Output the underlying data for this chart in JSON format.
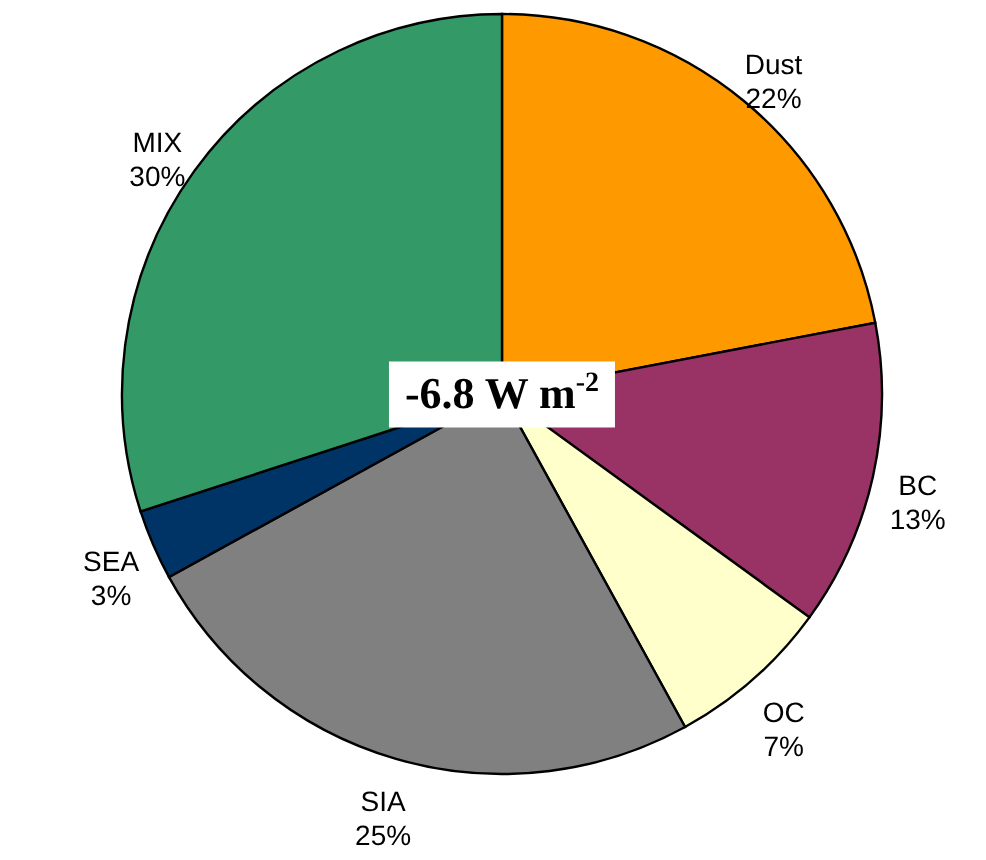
{
  "chart_data": {
    "type": "pie",
    "categories": [
      "Dust",
      "BC",
      "OC",
      "SIA",
      "SEA",
      "MIX"
    ],
    "values": [
      22,
      13,
      7,
      25,
      3,
      30
    ],
    "value_labels": [
      "22%",
      "13%",
      "7%",
      "25%",
      "3%",
      "30%"
    ],
    "colors": [
      "#ff9900",
      "#993366",
      "#ffffcc",
      "#808080",
      "#003366",
      "#339966"
    ],
    "annotations": [
      "-6.8 W m$^{-2}$"
    ]
  }
}
